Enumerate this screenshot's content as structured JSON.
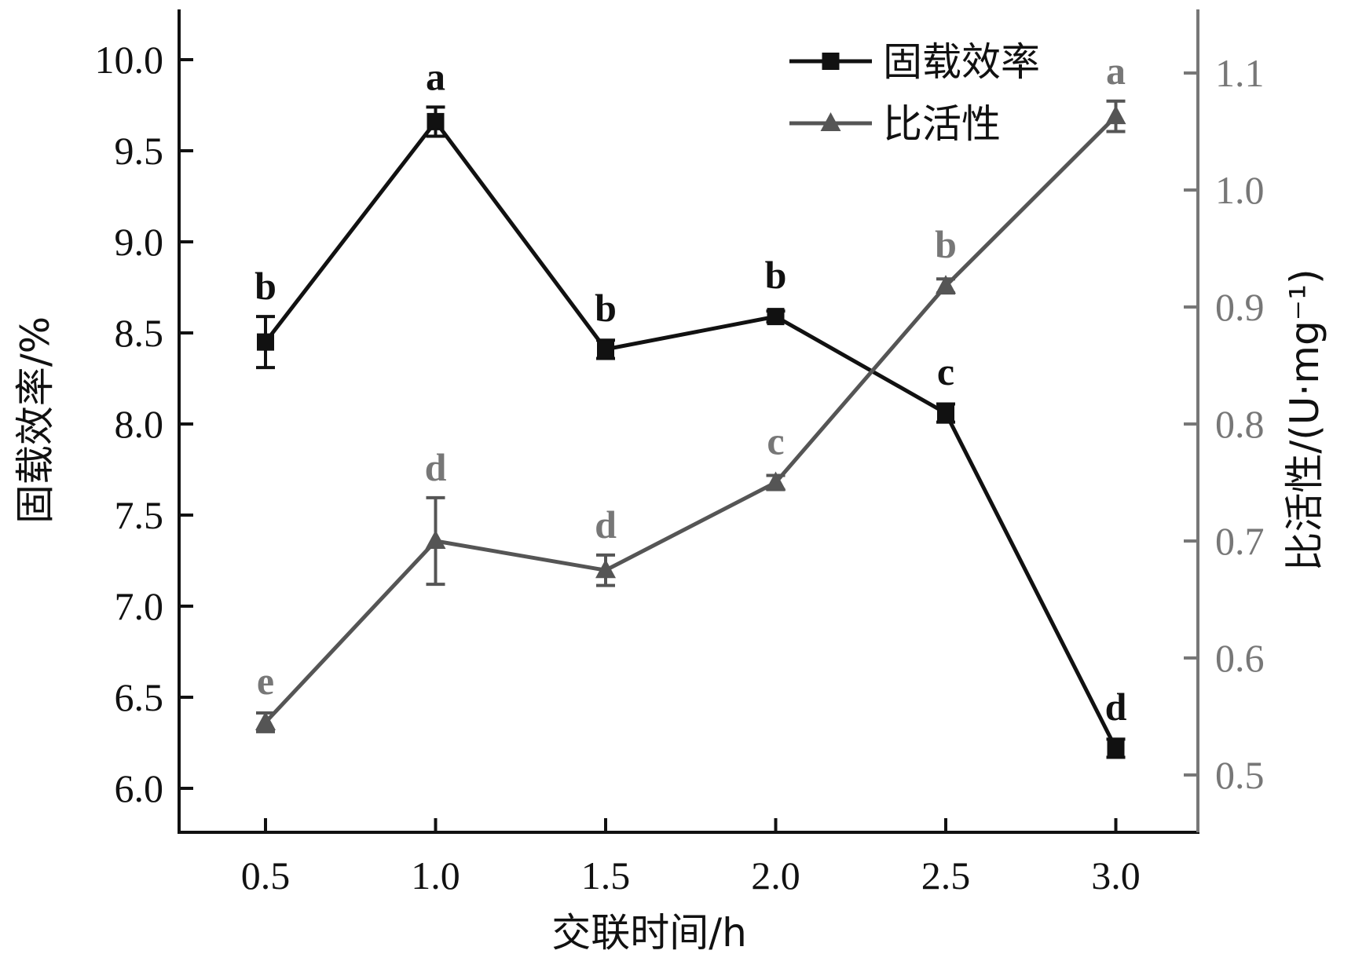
{
  "chart_data": {
    "type": "line",
    "x": [
      0.5,
      1.0,
      1.5,
      2.0,
      2.5,
      3.0
    ],
    "xlabel": "交联时间/h",
    "x_ticks": [
      "0.5",
      "1.0",
      "1.5",
      "2.0",
      "2.5",
      "3.0"
    ],
    "ylabel_left": "固载效率/%",
    "ylabel_right": "比活性/(U·mg⁻¹)",
    "ylim_left": [
      5.75,
      10.3
    ],
    "ylim_right": [
      0.45,
      1.15
    ],
    "yticks_left": [
      "6.0",
      "6.5",
      "7.0",
      "7.5",
      "8.0",
      "8.5",
      "9.0",
      "9.5",
      "10.0"
    ],
    "yticks_right": [
      "0.5",
      "0.6",
      "0.7",
      "0.8",
      "0.9",
      "1.0",
      "1.1"
    ],
    "legend_position": "top-right",
    "grid": false,
    "series": [
      {
        "name": "固载效率",
        "axis": "left",
        "marker": "square",
        "color": "#111111",
        "values": [
          8.45,
          9.66,
          8.41,
          8.59,
          8.06,
          6.22
        ],
        "errors": [
          0.14,
          0.08,
          0.05,
          0.03,
          0.05,
          0.05
        ],
        "labels": [
          "b",
          "a",
          "b",
          "b",
          "c",
          "d"
        ]
      },
      {
        "name": "比活性",
        "axis": "right",
        "marker": "triangle",
        "color": "#555555",
        "values": [
          0.545,
          0.7,
          0.675,
          0.75,
          0.918,
          1.063
        ],
        "errors": [
          0.008,
          0.037,
          0.013,
          0.006,
          0.006,
          0.013
        ],
        "labels": [
          "e",
          "d",
          "d",
          "c",
          "b",
          "a"
        ]
      }
    ]
  }
}
